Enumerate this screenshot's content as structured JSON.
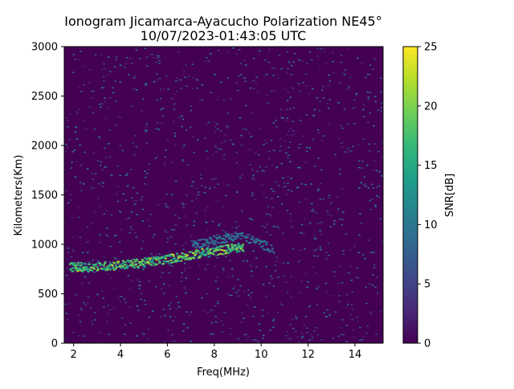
{
  "chart_data": {
    "type": "heatmap",
    "title_line1": "Ionogram Jicamarca-Ayacucho Polarization NE45°",
    "title_line2": "10/07/2023-01:43:05 UTC",
    "xlabel": "Freq(MHz)",
    "ylabel": "Kilometers(Km)",
    "xlim": [
      1.6,
      15.2
    ],
    "ylim": [
      0,
      3000
    ],
    "x_ticks": [
      2,
      4,
      6,
      8,
      10,
      12,
      14
    ],
    "x_tick_labels": [
      "2",
      "4",
      "6",
      "8",
      "10",
      "12",
      "14"
    ],
    "y_ticks": [
      0,
      500,
      1000,
      1500,
      2000,
      2500,
      3000
    ],
    "y_tick_labels": [
      "0",
      "500",
      "1000",
      "1500",
      "2000",
      "2500",
      "3000"
    ],
    "colorbar": {
      "label": "SNR[dB]",
      "range": [
        0,
        25
      ],
      "ticks": [
        0,
        5,
        10,
        15,
        20,
        25
      ],
      "tick_labels": [
        "0",
        "5",
        "10",
        "15",
        "20",
        "25"
      ],
      "colormap": "viridis",
      "colors": [
        "#440154",
        "#482878",
        "#3e4989",
        "#31688e",
        "#26828e",
        "#1f9e89",
        "#35b779",
        "#6ece58",
        "#b5de2b",
        "#fde725"
      ]
    },
    "background_snr_db": 0,
    "echo_traces": [
      {
        "name": "",
        "points": [
          [
            1.8,
            780
          ],
          [
            2.5,
            775
          ],
          [
            3.5,
            790
          ],
          [
            4.5,
            810
          ],
          [
            5.5,
            840
          ],
          [
            6.5,
            880
          ],
          [
            7.5,
            920
          ],
          [
            8.5,
            960
          ],
          [
            9.2,
            980
          ]
        ],
        "snr_db": 20
      },
      {
        "name": "",
        "points": [
          [
            7.0,
            1000
          ],
          [
            8.0,
            1050
          ],
          [
            9.0,
            1100
          ],
          [
            10.5,
            960
          ]
        ],
        "snr_db": 10
      }
    ]
  }
}
